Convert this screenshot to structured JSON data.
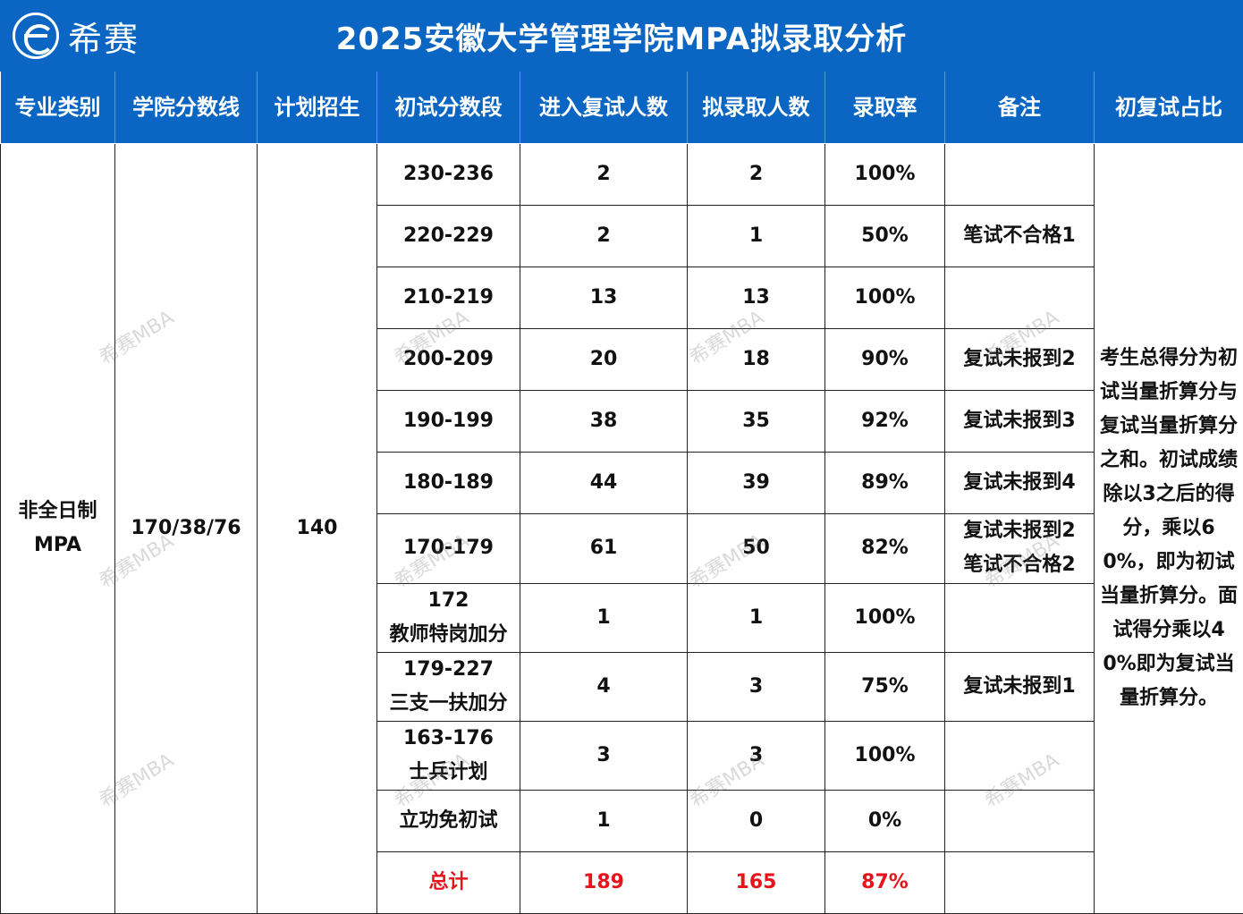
{
  "banner": {
    "logo_text": "希赛",
    "title": "2025安徽大学管理学院MPA拟录取分析"
  },
  "headers": [
    "专业类别",
    "学院分数线",
    "计划招生",
    "初试分数段",
    "进入复试人数",
    "拟录取人数",
    "录取率",
    "备注",
    "初复试占比"
  ],
  "merged": {
    "major_line1": "非全日制",
    "major_line2": "MPA",
    "cutoff": "170/38/76",
    "plan": "140",
    "ratio_desc": "考生总得分为初试当量折算分与复试当量折算分之和。初试成绩除以3之后的得分，乘以60%，即为初试当量折算分。面试得分乘以40%即为复试当量折算分。"
  },
  "rows": [
    {
      "range": "230-236",
      "range2": "",
      "retest": "2",
      "admit": "2",
      "rate": "100%",
      "note": "",
      "note2": ""
    },
    {
      "range": "220-229",
      "range2": "",
      "retest": "2",
      "admit": "1",
      "rate": "50%",
      "note": "笔试不合格1",
      "note2": ""
    },
    {
      "range": "210-219",
      "range2": "",
      "retest": "13",
      "admit": "13",
      "rate": "100%",
      "note": "",
      "note2": ""
    },
    {
      "range": "200-209",
      "range2": "",
      "retest": "20",
      "admit": "18",
      "rate": "90%",
      "note": "复试未报到2",
      "note2": ""
    },
    {
      "range": "190-199",
      "range2": "",
      "retest": "38",
      "admit": "35",
      "rate": "92%",
      "note": "复试未报到3",
      "note2": ""
    },
    {
      "range": "180-189",
      "range2": "",
      "retest": "44",
      "admit": "39",
      "rate": "89%",
      "note": "复试未报到4",
      "note2": ""
    },
    {
      "range": "170-179",
      "range2": "",
      "retest": "61",
      "admit": "50",
      "rate": "82%",
      "note": "复试未报到2",
      "note2": "笔试不合格2"
    },
    {
      "range": "172",
      "range2": "教师特岗加分",
      "retest": "1",
      "admit": "1",
      "rate": "100%",
      "note": "",
      "note2": ""
    },
    {
      "range": "179-227",
      "range2": "三支一扶加分",
      "retest": "4",
      "admit": "3",
      "rate": "75%",
      "note": "复试未报到1",
      "note2": ""
    },
    {
      "range": "163-176",
      "range2": "士兵计划",
      "retest": "3",
      "admit": "3",
      "rate": "100%",
      "note": "",
      "note2": ""
    },
    {
      "range": "立功免初试",
      "range2": "",
      "retest": "1",
      "admit": "0",
      "rate": "0%",
      "note": "",
      "note2": ""
    }
  ],
  "total": {
    "label": "总计",
    "retest": "189",
    "admit": "165",
    "rate": "87%"
  },
  "watermark": "希赛MBA",
  "colors": {
    "header_bg": "#0a66c2",
    "total_text": "#e8141b"
  }
}
